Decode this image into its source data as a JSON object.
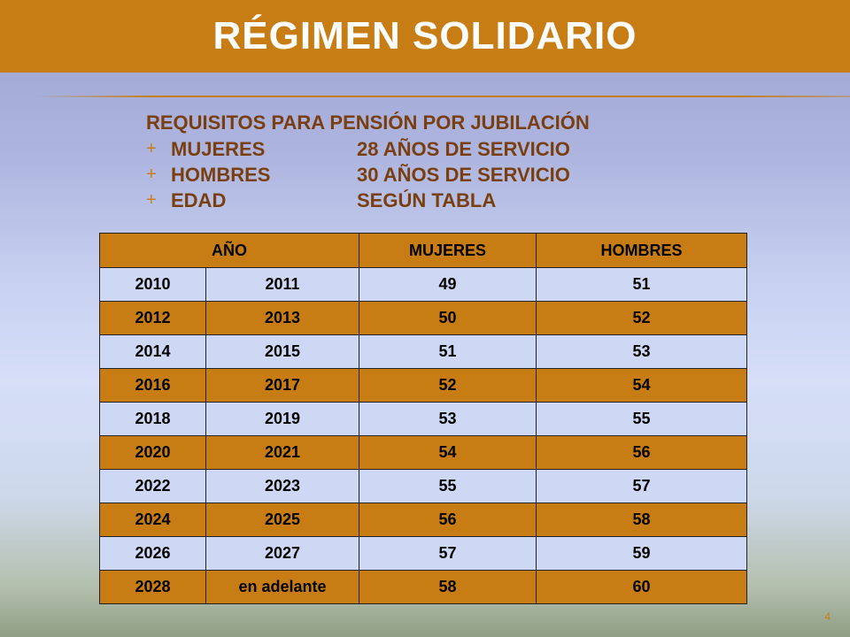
{
  "slide": {
    "title": "RÉGIMEN SOLIDARIO",
    "page_number": "4"
  },
  "requirements": {
    "heading": "REQUISITOS PARA PENSIÓN POR JUBILACIÓN",
    "bullet_glyph": "+",
    "items": [
      {
        "label": "MUJERES",
        "value": "28 AÑOS DE SERVICIO"
      },
      {
        "label": "HOMBRES",
        "value": "30 AÑOS DE SERVICIO"
      },
      {
        "label": "EDAD",
        "value": "SEGÚN TABLA"
      }
    ]
  },
  "table": {
    "headers": [
      "AÑO",
      "MUJERES",
      "HOMBRES"
    ],
    "rows": [
      {
        "year_from": "2010",
        "year_to": "2011",
        "mujeres": "49",
        "hombres": "51"
      },
      {
        "year_from": "2012",
        "year_to": "2013",
        "mujeres": "50",
        "hombres": "52"
      },
      {
        "year_from": "2014",
        "year_to": "2015",
        "mujeres": "51",
        "hombres": "53"
      },
      {
        "year_from": "2016",
        "year_to": "2017",
        "mujeres": "52",
        "hombres": "54"
      },
      {
        "year_from": "2018",
        "year_to": "2019",
        "mujeres": "53",
        "hombres": "55"
      },
      {
        "year_from": "2020",
        "year_to": "2021",
        "mujeres": "54",
        "hombres": "56"
      },
      {
        "year_from": "2022",
        "year_to": "2023",
        "mujeres": "55",
        "hombres": "57"
      },
      {
        "year_from": "2024",
        "year_to": "2025",
        "mujeres": "56",
        "hombres": "58"
      },
      {
        "year_from": "2026",
        "year_to": "2027",
        "mujeres": "57",
        "hombres": "59"
      },
      {
        "year_from": "2028",
        "year_to": "en adelante",
        "mujeres": "58",
        "hombres": "60"
      }
    ]
  },
  "colors": {
    "accent": "#c87d14",
    "text_brown": "#7a3f10",
    "row_light": "#ced7f3"
  }
}
